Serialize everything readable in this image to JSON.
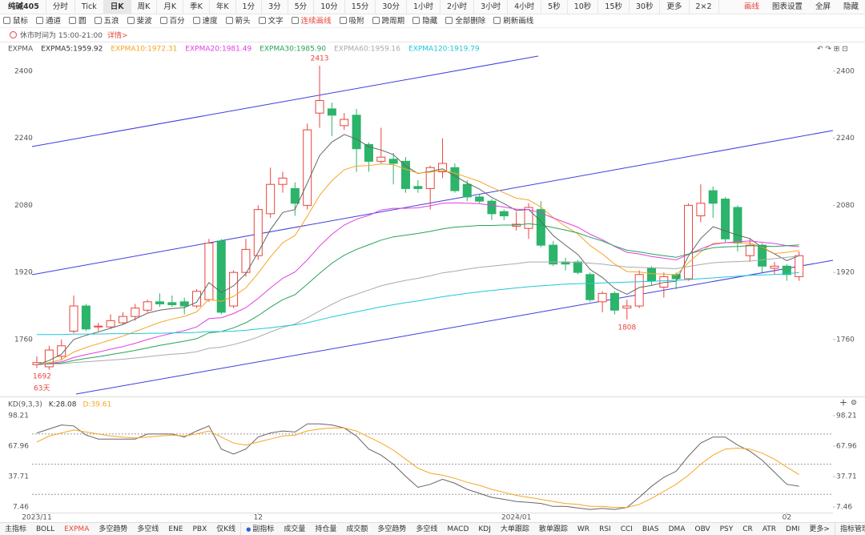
{
  "toolbar": {
    "symbol": "纯碱405",
    "periods": [
      "分时",
      "Tick",
      "日K",
      "周K",
      "月K",
      "季K",
      "年K",
      "1分",
      "3分",
      "5分",
      "10分",
      "15分",
      "30分",
      "1小时",
      "2小时",
      "3小时",
      "4小时",
      "5秒",
      "10秒",
      "15秒",
      "30秒",
      "更多",
      "2×2"
    ],
    "selected_index": 2,
    "right": [
      "画线",
      "图表设置",
      "全屏",
      "隐藏"
    ]
  },
  "drawbar": {
    "tools": [
      "鼠标",
      "通道",
      "圆",
      "五浪",
      "斐波",
      "百分",
      "速度",
      "箭头",
      "文字",
      "连续画线",
      "吸附",
      "跨周期",
      "隐藏",
      "全部删除",
      "刷新画线"
    ]
  },
  "notice": {
    "text": "休市时间为 15:00-21:00",
    "link": "详情>"
  },
  "chart_data": [
    {
      "type": "candlestick",
      "indicator": "EXPMA",
      "open": [
        1700,
        1695,
        1720,
        1780,
        1840,
        1790,
        1790,
        1800,
        1815,
        1830,
        1850,
        1848,
        1850,
        1840,
        1855,
        1995,
        1840,
        1920,
        1960,
        2060,
        2130,
        2120,
        2080,
        2300,
        2310,
        2270,
        2295,
        2225,
        2185,
        2190,
        2185,
        2125,
        2120,
        2160,
        2170,
        2130,
        2100,
        2090,
        2065,
        2030,
        2025,
        2070,
        1985,
        1945,
        1945,
        1915,
        1850,
        1870,
        1835,
        1840,
        1930,
        1885,
        1915,
        1905,
        2055,
        2115,
        2095,
        2075,
        1960,
        1985,
        1930,
        1935,
        1910
      ],
      "high": [
        1720,
        1745,
        1760,
        1865,
        1845,
        1800,
        1820,
        1825,
        1845,
        1855,
        1870,
        1865,
        1860,
        1880,
        2000,
        2000,
        1925,
        2000,
        2080,
        2170,
        2160,
        2135,
        2275,
        2413,
        2325,
        2300,
        2310,
        2230,
        2265,
        2205,
        2195,
        2140,
        2175,
        2240,
        2180,
        2140,
        2105,
        2095,
        2070,
        2065,
        2085,
        2090,
        1995,
        1955,
        1950,
        1920,
        1875,
        1875,
        1855,
        1925,
        1935,
        1920,
        1920,
        2085,
        2130,
        2125,
        2100,
        2080,
        2000,
        1990,
        1945,
        1940,
        1970
      ],
      "low": [
        1692,
        1688,
        1710,
        1775,
        1780,
        1780,
        1785,
        1795,
        1805,
        1825,
        1838,
        1838,
        1820,
        1835,
        1850,
        1820,
        1835,
        1910,
        1950,
        2050,
        2110,
        2055,
        2070,
        2265,
        2245,
        2260,
        2160,
        2160,
        2180,
        2130,
        2110,
        2110,
        2070,
        2145,
        2110,
        2090,
        2085,
        2045,
        2045,
        2020,
        2000,
        1980,
        1935,
        1925,
        1915,
        1850,
        1825,
        1820,
        1808,
        1835,
        1890,
        1860,
        1880,
        1900,
        2040,
        2050,
        1990,
        1970,
        1945,
        1920,
        1915,
        1900,
        1900
      ],
      "close": [
        1705,
        1735,
        1745,
        1840,
        1785,
        1792,
        1805,
        1815,
        1835,
        1850,
        1845,
        1843,
        1840,
        1875,
        1990,
        1825,
        1920,
        1975,
        2070,
        2130,
        2145,
        2085,
        2260,
        2330,
        2295,
        2285,
        2215,
        2185,
        2195,
        2180,
        2120,
        2120,
        2170,
        2180,
        2115,
        2100,
        2090,
        2060,
        2055,
        2035,
        2075,
        1985,
        1940,
        1940,
        1920,
        1855,
        1870,
        1830,
        1840,
        1915,
        1900,
        1910,
        1905,
        2080,
        2085,
        2085,
        2000,
        1990,
        1985,
        1935,
        1935,
        1915,
        1960
      ],
      "up_color": "#e8453c",
      "down_color": "#2bb46a",
      "ylim": [
        1630,
        2436
      ],
      "yticks": [
        1760,
        1920,
        2080,
        2240,
        2400
      ],
      "series": [
        {
          "name": "EXPMA5:1959.92",
          "color": "#666666",
          "values": [
            1700,
            1710,
            1725,
            1760,
            1770,
            1778,
            1787,
            1796,
            1809,
            1823,
            1830,
            1834,
            1836,
            1849,
            1896,
            1872,
            1888,
            1917,
            1968,
            2022,
            2063,
            2070,
            2133,
            2199,
            2231,
            2249,
            2238,
            2220,
            2212,
            2201,
            2174,
            2156,
            2161,
            2167,
            2150,
            2133,
            2119,
            2099,
            2084,
            2068,
            2070,
            2042,
            2008,
            1985,
            1963,
            1927,
            1908,
            1882,
            1868,
            1884,
            1889,
            1896,
            1899,
            1959,
            2001,
            2029,
            2019,
            2009,
            2001,
            1979,
            1964,
            1948,
            1959.92
          ]
        },
        {
          "name": "EXPMA10:1972.31",
          "color": "#f5a623",
          "values": [
            1700,
            1705,
            1712,
            1730,
            1741,
            1750,
            1759,
            1768,
            1779,
            1790,
            1801,
            1809,
            1815,
            1826,
            1856,
            1851,
            1863,
            1883,
            1918,
            1957,
            1991,
            2008,
            2054,
            2104,
            2139,
            2165,
            2174,
            2175,
            2179,
            2177,
            2166,
            2157,
            2159,
            2163,
            2157,
            2147,
            2137,
            2123,
            2110,
            2097,
            2093,
            2076,
            2051,
            2030,
            2012,
            1984,
            1964,
            1940,
            1922,
            1921,
            1917,
            1916,
            1914,
            1943,
            1969,
            1989,
            1991,
            1991,
            1990,
            1980,
            1965,
            1968,
            1972.31
          ]
        },
        {
          "name": "EXPMA20:1981.49",
          "color": "#e040e0",
          "values": [
            1700,
            1703,
            1707,
            1717,
            1724,
            1730,
            1737,
            1743,
            1751,
            1760,
            1768,
            1775,
            1781,
            1790,
            1810,
            1812,
            1822,
            1836,
            1858,
            1883,
            1906,
            1921,
            1950,
            1983,
            2011,
            2033,
            2047,
            2056,
            2069,
            2073,
            2073,
            2074,
            2079,
            2085,
            2086,
            2085,
            2084,
            2080,
            2076,
            2071,
            2070,
            2062,
            2050,
            2039,
            2028,
            2011,
            1998,
            1982,
            1968,
            1964,
            1958,
            1954,
            1950,
            1963,
            1976,
            1987,
            1991,
            1993,
            1995,
            1992,
            1989,
            1984,
            1981.49
          ]
        },
        {
          "name": "EXPMA30:1985.90",
          "color": "#27a35a",
          "values": [
            1700,
            1702,
            1704,
            1710,
            1715,
            1719,
            1724,
            1729,
            1734,
            1740,
            1746,
            1751,
            1756,
            1762,
            1776,
            1779,
            1788,
            1800,
            1817,
            1837,
            1855,
            1867,
            1892,
            1918,
            1942,
            1961,
            1975,
            1986,
            1997,
            2005,
            2009,
            2013,
            2018,
            2024,
            2028,
            2030,
            2032,
            2032,
            2033,
            2033,
            2036,
            2033,
            2027,
            2021,
            2014,
            2004,
            1995,
            1983,
            1973,
            1969,
            1964,
            1960,
            1956,
            1964,
            1972,
            1979,
            1981,
            1982,
            1984,
            1983,
            1982,
            1984,
            1985.9
          ]
        },
        {
          "name": "EXPMA60:1959.16",
          "color": "#aaaaaa",
          "values": [
            1700,
            1701,
            1702,
            1705,
            1707,
            1709,
            1711,
            1713,
            1716,
            1719,
            1722,
            1725,
            1727,
            1731,
            1739,
            1742,
            1748,
            1756,
            1766,
            1778,
            1789,
            1797,
            1812,
            1828,
            1844,
            1858,
            1868,
            1878,
            1888,
            1895,
            1901,
            1906,
            1912,
            1919,
            1923,
            1928,
            1932,
            1935,
            1938,
            1941,
            1945,
            1945,
            1945,
            1945,
            1944,
            1942,
            1940,
            1936,
            1933,
            1932,
            1931,
            1930,
            1929,
            1934,
            1939,
            1943,
            1945,
            1946,
            1947,
            1950,
            1953,
            1956,
            1959.16
          ]
        },
        {
          "name": "EXPMA120:1919.79",
          "color": "#1ec8d8",
          "values": [
            1772,
            1772,
            1772,
            1773,
            1773,
            1773,
            1774,
            1774,
            1774,
            1775,
            1775,
            1776,
            1776,
            1777,
            1779,
            1779,
            1780,
            1782,
            1785,
            1788,
            1792,
            1795,
            1800,
            1807,
            1814,
            1820,
            1826,
            1832,
            1838,
            1843,
            1848,
            1852,
            1857,
            1862,
            1866,
            1870,
            1874,
            1877,
            1880,
            1883,
            1886,
            1888,
            1890,
            1892,
            1893,
            1894,
            1895,
            1896,
            1897,
            1898,
            1899,
            1900,
            1901,
            1903,
            1905,
            1907,
            1909,
            1911,
            1913,
            1914,
            1915,
            1917,
            1919.79
          ]
        }
      ],
      "annotations": [
        "2413",
        "1808",
        "1692",
        "63天"
      ]
    },
    {
      "type": "line",
      "title": "KD(9,3,3)",
      "categories": [
        "2023/11",
        null,
        null,
        null,
        null,
        null,
        null,
        null,
        null,
        null,
        null,
        null,
        null,
        null,
        null,
        null,
        null,
        null,
        "12",
        null,
        null,
        null,
        null,
        null,
        null,
        null,
        null,
        null,
        null,
        null,
        null,
        null,
        null,
        null,
        null,
        null,
        null,
        null,
        null,
        "2024/01",
        null,
        null,
        null,
        null,
        null,
        null,
        null,
        null,
        null,
        null,
        null,
        null,
        null,
        null,
        null,
        null,
        null,
        null,
        null,
        null,
        null,
        "02",
        null
      ],
      "ylim": [
        1.9,
        103.8
      ],
      "yticks": [
        7.46,
        37.71,
        67.96,
        98.21
      ],
      "ref_lines": [
        80,
        50,
        20
      ],
      "series": [
        {
          "name": "K:28.08",
          "color": "#666666",
          "values": [
            81,
            85,
            89,
            88,
            79,
            75,
            75,
            75,
            75,
            80,
            80,
            80,
            77,
            83,
            88,
            65,
            60,
            65,
            77,
            81,
            83,
            82,
            90,
            90,
            89,
            86,
            78,
            65,
            59,
            50,
            38,
            27,
            30,
            35,
            31,
            25,
            21,
            17,
            15,
            13,
            12,
            11,
            8,
            8,
            6.5,
            5,
            6,
            5,
            7,
            17,
            28,
            37,
            43,
            58,
            71,
            77,
            77,
            69,
            63,
            54,
            42,
            30,
            28.08
          ]
        },
        {
          "name": "D:39.61",
          "color": "#f5a623",
          "values": [
            72,
            78,
            81,
            84,
            82,
            80,
            78,
            77,
            76,
            77,
            78,
            79,
            78,
            80,
            83,
            77,
            71,
            69,
            72,
            75,
            78,
            79,
            83,
            85,
            86,
            86,
            83,
            77,
            71,
            64,
            55,
            46,
            41,
            39,
            36,
            32,
            29,
            25,
            22,
            19,
            17,
            15,
            13,
            11,
            10,
            8,
            8,
            7,
            7,
            10,
            16,
            23,
            30,
            39,
            50,
            59,
            65,
            66,
            65,
            61,
            55,
            47,
            39.61
          ]
        }
      ]
    }
  ],
  "indicator_tabs": {
    "main_label": "主指标",
    "main": [
      "BOLL",
      "EXPMA",
      "多空趋势",
      "多空线",
      "ENE",
      "PBX",
      "仅K线"
    ],
    "selected_index": 1,
    "sub_label": "副指标",
    "sub": [
      "成交量",
      "持仓量",
      "成交额",
      "多空趋势",
      "多空线",
      "MACD",
      "KDJ",
      "大单跟踪",
      "散单跟踪",
      "WR",
      "RSI",
      "CCI",
      "BIAS",
      "DMA",
      "OBV",
      "PSY",
      "CR",
      "ATR",
      "DMI",
      "更多>"
    ],
    "manage": "指标管理"
  }
}
